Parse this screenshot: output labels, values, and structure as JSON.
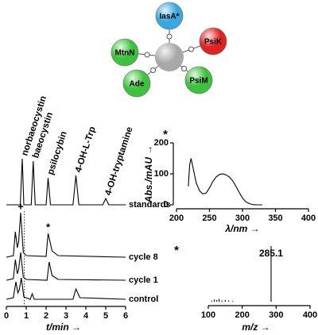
{
  "diagram": {
    "center_color": "#a8a8a8",
    "nodes": [
      {
        "label": "IasA*",
        "color": "#38a8e0"
      },
      {
        "label": "PsiK",
        "color": "#e02222"
      },
      {
        "label": "PsiM",
        "color": "#3cc23c"
      },
      {
        "label": "Ade",
        "color": "#3cc23c"
      },
      {
        "label": "MtnN",
        "color": "#3cc23c"
      }
    ]
  },
  "chart_data": [
    {
      "type": "line",
      "x_label": "t/min →",
      "xlim": [
        0,
        6
      ],
      "xticks": [
        0,
        1,
        2,
        3,
        4,
        5,
        6
      ],
      "color": "#000000",
      "peak_labels": [
        {
          "text": "norbaeocystin",
          "x": 0.8
        },
        {
          "text": "baeocystin",
          "x": 1.35
        },
        {
          "text": "psilocybin",
          "x": 2.1
        },
        {
          "text": "4-OH-L-Trp",
          "x": 3.5
        },
        {
          "text": "4-OH-tryptamine",
          "x": 5.0
        }
      ],
      "series": [
        {
          "name": "standards",
          "x": [
            0,
            0.7,
            0.8,
            0.88,
            1.25,
            1.35,
            1.45,
            2.0,
            2.1,
            2.22,
            3.35,
            3.5,
            3.65,
            4.85,
            5.0,
            5.15,
            6
          ],
          "values": [
            0,
            0,
            58,
            0,
            0,
            55,
            0,
            0,
            34,
            0,
            0,
            37,
            0,
            0,
            8,
            0,
            0
          ]
        },
        {
          "name": "cycle 8",
          "x": [
            0,
            0.35,
            0.45,
            0.55,
            0.62,
            0.72,
            0.85,
            1.0,
            2.0,
            2.1,
            2.3,
            2.6,
            6
          ],
          "values": [
            0,
            2,
            32,
            12,
            20,
            56,
            6,
            2,
            1,
            30,
            8,
            2,
            0
          ],
          "markers": [
            {
              "text": "+",
              "x": 0.72
            },
            {
              "text": "*",
              "x": 2.1
            }
          ]
        },
        {
          "name": "cycle 1",
          "x": [
            0,
            0.35,
            0.45,
            0.55,
            0.62,
            0.72,
            0.85,
            1.0,
            2.05,
            2.15,
            2.3,
            2.6,
            6
          ],
          "values": [
            0,
            2,
            26,
            8,
            14,
            35,
            4,
            1,
            0,
            23,
            6,
            1,
            0
          ]
        },
        {
          "name": "control",
          "x": [
            0,
            0.35,
            0.48,
            0.58,
            0.65,
            0.75,
            0.88,
            1.2,
            1.3,
            1.4,
            3.35,
            3.5,
            3.7,
            6
          ],
          "values": [
            0,
            2,
            22,
            8,
            12,
            27,
            3,
            0,
            7,
            0,
            0,
            13,
            2,
            0
          ]
        }
      ]
    },
    {
      "type": "line",
      "title": "*",
      "x_label": "λ/nm →",
      "y_label": "Abs./mAU →",
      "color": "#000000",
      "xlim": [
        200,
        400
      ],
      "xticks": [
        200,
        250,
        300,
        350,
        400
      ],
      "ylim": [
        0,
        200
      ],
      "yticks": [
        0,
        100,
        200
      ],
      "x": [
        218,
        220,
        222,
        225,
        230,
        235,
        240,
        245,
        250,
        255,
        260,
        265,
        270,
        275,
        280,
        285,
        290,
        295,
        300,
        305,
        310,
        315,
        320,
        330
      ],
      "values": [
        60,
        130,
        150,
        120,
        70,
        45,
        35,
        38,
        55,
        75,
        90,
        98,
        100,
        97,
        90,
        78,
        60,
        40,
        22,
        10,
        4,
        1,
        0,
        0
      ]
    },
    {
      "type": "stick",
      "title": "*",
      "x_label": "m/z →",
      "peak_label": "285.1",
      "color": "#000000",
      "xlim": [
        100,
        400
      ],
      "xticks": [
        100,
        200,
        300,
        400
      ],
      "x": [
        110,
        118,
        125,
        132,
        140,
        150,
        160,
        172,
        285.1
      ],
      "values": [
        2,
        4,
        3,
        5,
        2,
        3,
        2,
        1,
        100
      ]
    }
  ]
}
